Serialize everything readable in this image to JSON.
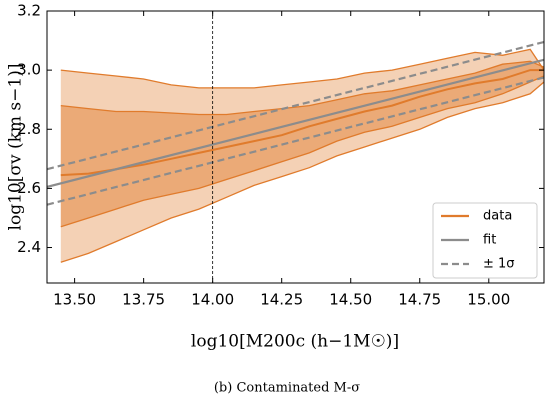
{
  "chart_data": {
    "type": "band_line",
    "xlabel": "log10[M200c (h−1M☉)]",
    "ylabel": "log10[σv (km s−1)]",
    "caption": "(b) Contaminated M-σ",
    "xlim": [
      13.4,
      15.2
    ],
    "ylim": [
      2.28,
      3.2
    ],
    "xticks": [
      {
        "value": 13.5,
        "label": "13.50"
      },
      13.75,
      {
        "value": 14.0,
        "label": "14.00"
      },
      14.25,
      {
        "value": 14.5,
        "label": "14.50"
      },
      14.75,
      {
        "value": 15.0,
        "label": "15.00"
      }
    ],
    "yticks": [
      2.4,
      2.6,
      2.8,
      {
        "value": 3.0,
        "label": "3.0"
      },
      3.2
    ],
    "vline": 14.0,
    "legend": "lower right",
    "series": [
      {
        "name": "data",
        "color": "#e07b2c",
        "x": [
          13.45,
          13.55,
          13.65,
          13.75,
          13.85,
          13.95,
          14.05,
          14.15,
          14.25,
          14.35,
          14.45,
          14.55,
          14.65,
          14.75,
          14.85,
          14.95,
          15.05,
          15.15,
          15.2
        ],
        "values": [
          2.645,
          2.65,
          2.665,
          2.68,
          2.7,
          2.72,
          2.74,
          2.76,
          2.78,
          2.81,
          2.835,
          2.86,
          2.88,
          2.91,
          2.935,
          2.955,
          2.97,
          3.0,
          3.0
        ],
        "inner_high": [
          2.88,
          2.87,
          2.86,
          2.86,
          2.855,
          2.85,
          2.85,
          2.86,
          2.87,
          2.88,
          2.9,
          2.92,
          2.93,
          2.95,
          2.97,
          2.99,
          3.02,
          3.03,
          3.01
        ],
        "inner_low": [
          2.47,
          2.5,
          2.53,
          2.56,
          2.58,
          2.6,
          2.63,
          2.66,
          2.69,
          2.72,
          2.76,
          2.79,
          2.81,
          2.84,
          2.87,
          2.89,
          2.92,
          2.96,
          2.98
        ],
        "outer_high": [
          3.0,
          2.99,
          2.98,
          2.97,
          2.95,
          2.94,
          2.94,
          2.94,
          2.95,
          2.96,
          2.97,
          2.99,
          3.0,
          3.02,
          3.04,
          3.06,
          3.05,
          3.07,
          3.0
        ],
        "outer_low": [
          2.35,
          2.38,
          2.42,
          2.46,
          2.5,
          2.53,
          2.57,
          2.61,
          2.64,
          2.67,
          2.71,
          2.74,
          2.77,
          2.8,
          2.84,
          2.87,
          2.89,
          2.92,
          2.96
        ]
      },
      {
        "name": "fit",
        "color": "#8c8c8c",
        "x": [
          13.4,
          15.2
        ],
        "values": [
          2.605,
          3.035
        ]
      },
      {
        "name": "± 1σ",
        "color": "#8c8c8c",
        "x": [
          13.4,
          15.2
        ],
        "upper": [
          2.665,
          3.095
        ],
        "lower": [
          2.545,
          2.975
        ]
      }
    ]
  }
}
